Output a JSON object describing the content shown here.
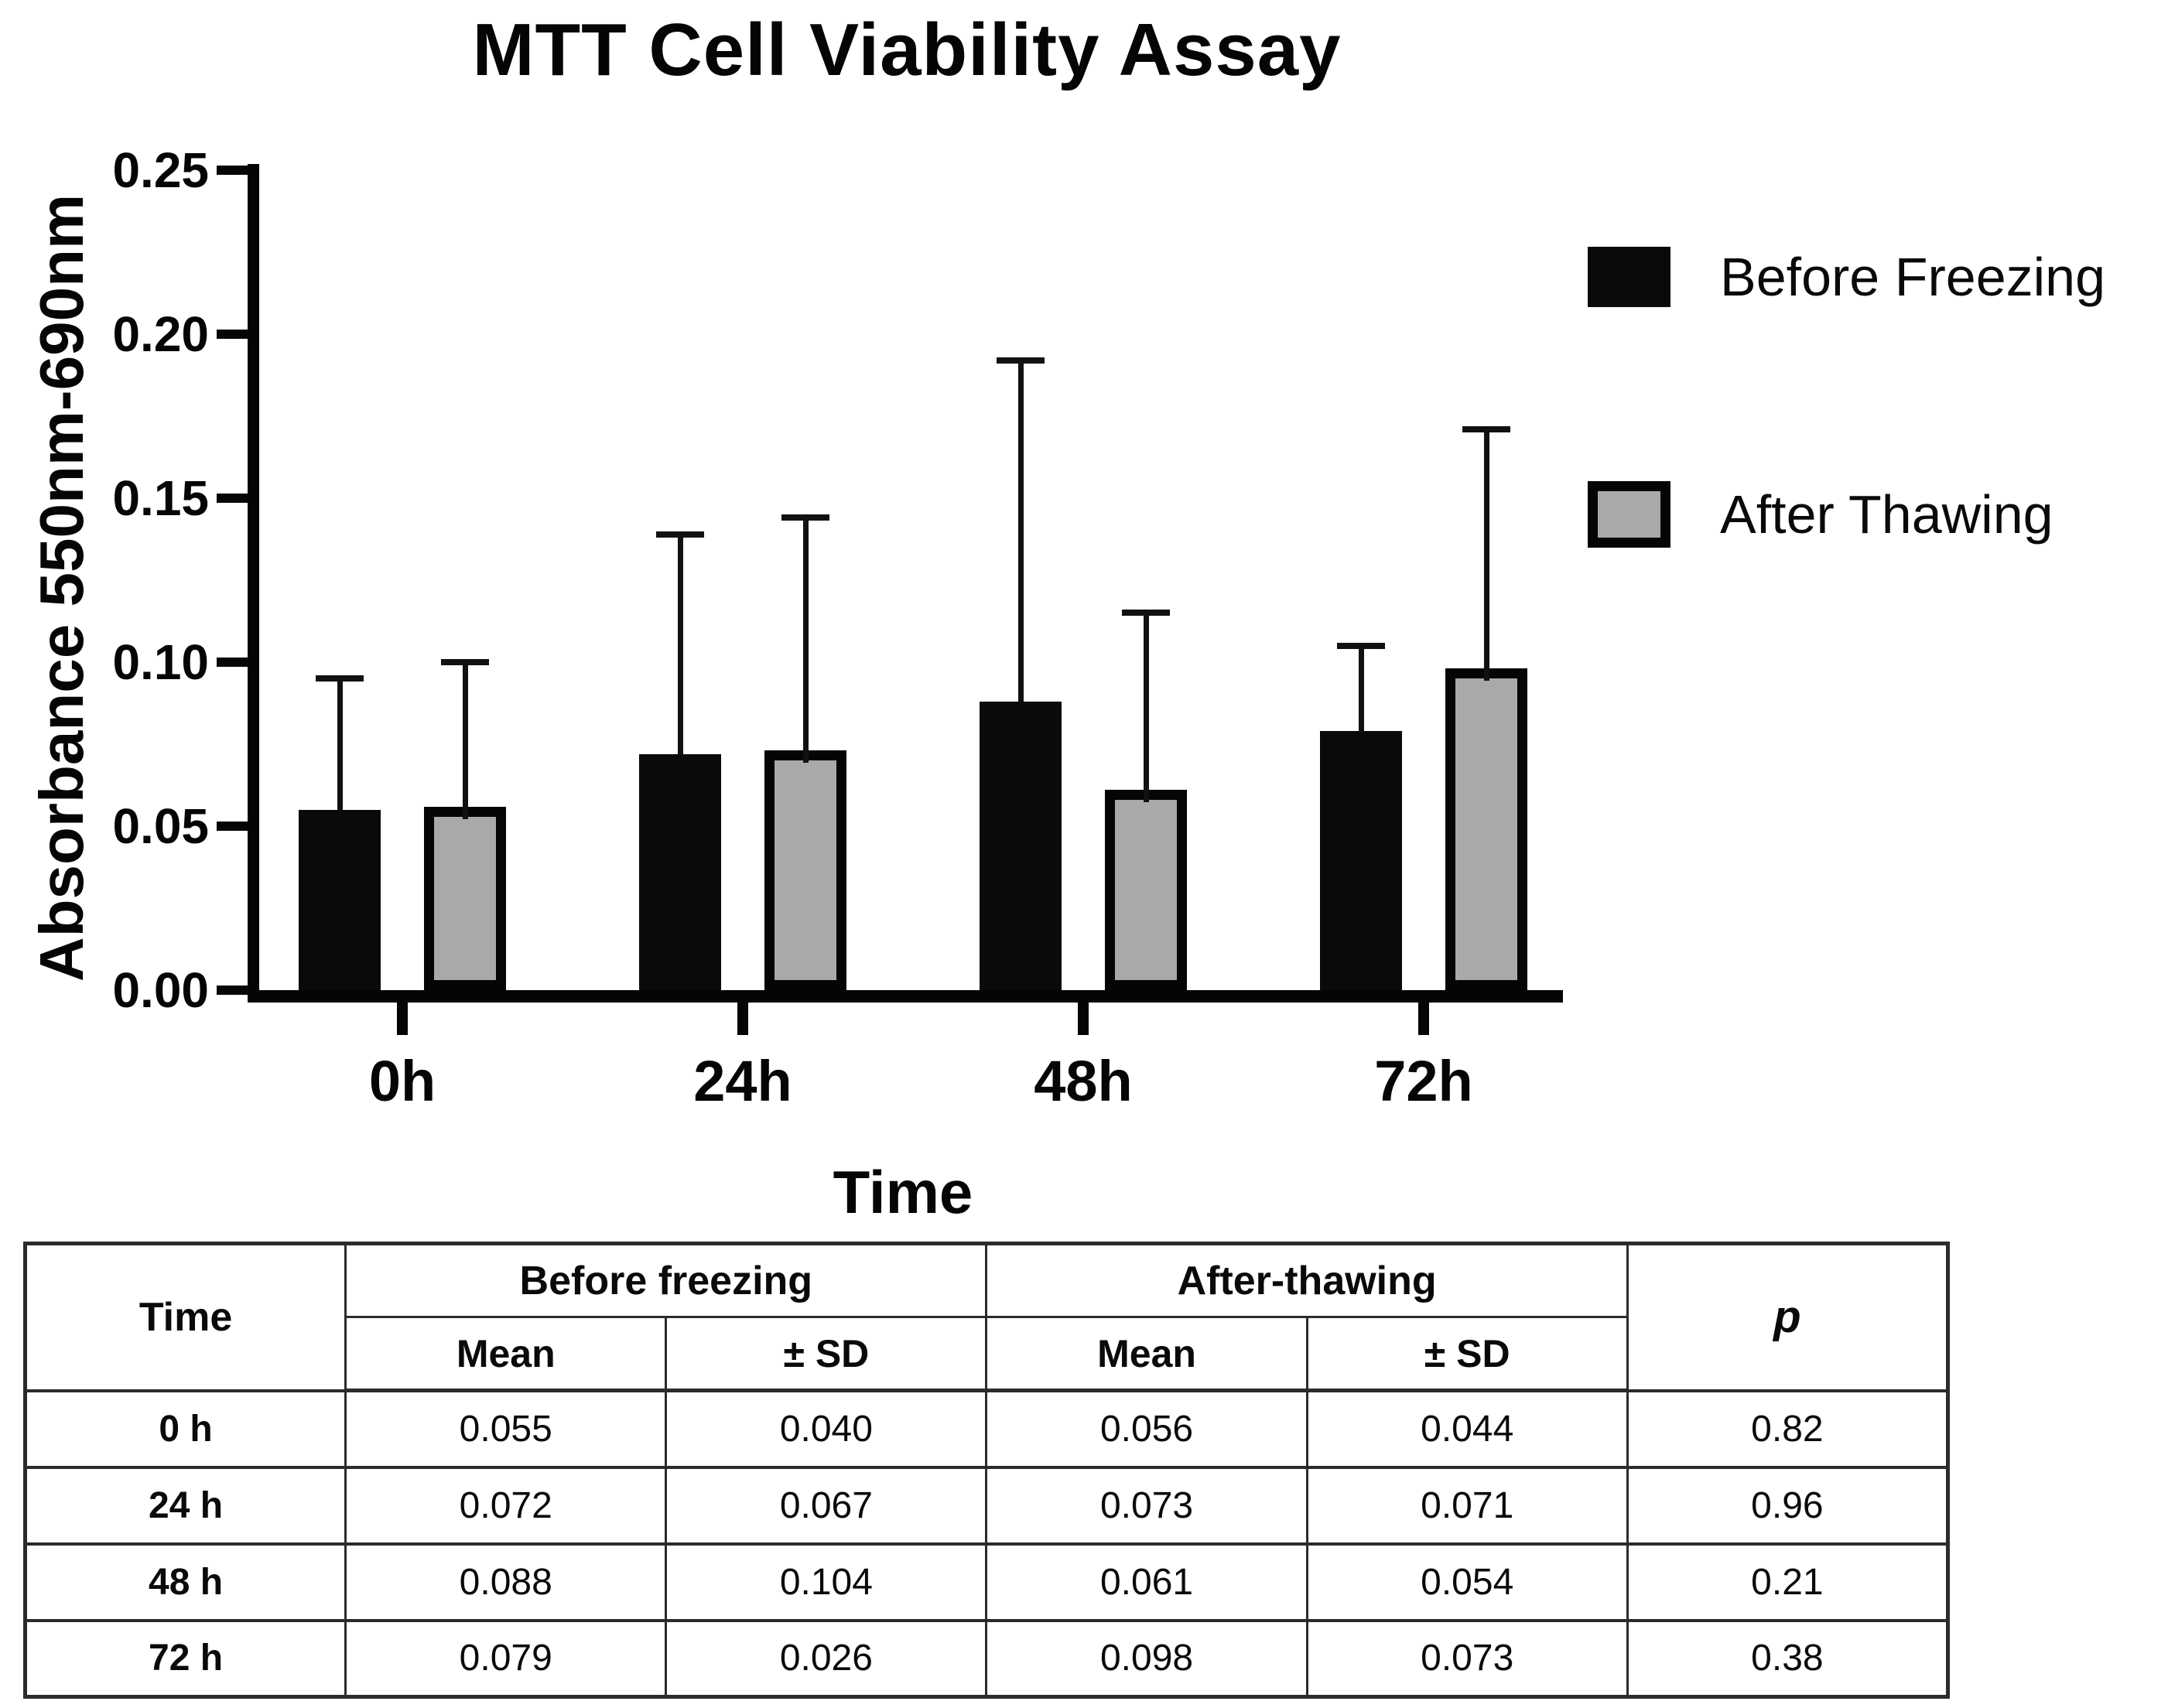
{
  "title": "MTT Cell Viability Assay",
  "chart_data": {
    "type": "bar",
    "title": "MTT Cell Viability Assay",
    "xlabel": "Time",
    "ylabel": "Absorbance 550nm-690nm",
    "categories": [
      "0h",
      "24h",
      "48h",
      "72h"
    ],
    "series": [
      {
        "name": "Before Freezing",
        "color": "#0a0a0a",
        "swatch": "filled-black",
        "values": [
          0.055,
          0.072,
          0.088,
          0.079
        ],
        "sd": [
          0.04,
          0.067,
          0.104,
          0.026
        ]
      },
      {
        "name": "After Thawing",
        "color": "#a9a9a9",
        "swatch": "gray-with-black-outline",
        "values": [
          0.056,
          0.073,
          0.061,
          0.098
        ],
        "sd": [
          0.044,
          0.071,
          0.054,
          0.073
        ]
      }
    ],
    "ylim": [
      0,
      0.25
    ],
    "y_ticks": [
      "0.00",
      "0.05",
      "0.10",
      "0.15",
      "0.20",
      "0.25"
    ],
    "error_bars": "upper_sd_only",
    "legend_position": "top-right",
    "grid": false
  },
  "table": {
    "time_header": "Time",
    "group_headers": [
      "Before freezing",
      "After-thawing"
    ],
    "sub_headers": [
      "Mean",
      "± SD",
      "Mean",
      "± SD"
    ],
    "p_header": "p",
    "rows": [
      {
        "time": "0 h",
        "bf_mean": "0.055",
        "bf_sd": "0.040",
        "at_mean": "0.056",
        "at_sd": "0.044",
        "p": "0.82"
      },
      {
        "time": "24 h",
        "bf_mean": "0.072",
        "bf_sd": "0.067",
        "at_mean": "0.073",
        "at_sd": "0.071",
        "p": "0.96"
      },
      {
        "time": "48 h",
        "bf_mean": "0.088",
        "bf_sd": "0.104",
        "at_mean": "0.061",
        "at_sd": "0.054",
        "p": "0.21"
      },
      {
        "time": "72 h",
        "bf_mean": "0.079",
        "bf_sd": "0.026",
        "at_mean": "0.098",
        "at_sd": "0.073",
        "p": "0.38"
      }
    ]
  },
  "colors": {
    "bar_black": "#0a0a0a",
    "bar_gray": "#a9a9a9",
    "axis": "#050505",
    "table_border": "#2b2b2b",
    "background": "#ffffff"
  }
}
